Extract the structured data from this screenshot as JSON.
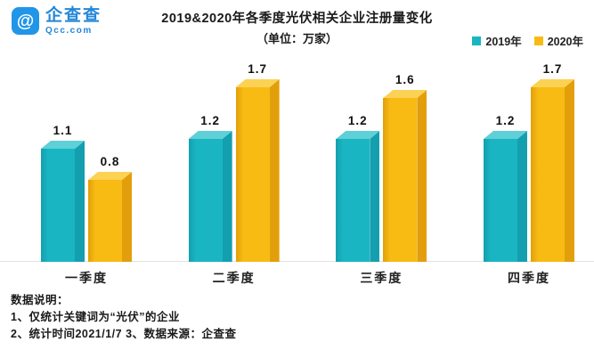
{
  "brand": {
    "name": "企查查",
    "domain_label": "Qcc.com",
    "logo_color": "#2196e8"
  },
  "header": {
    "title": "2019&2020年各季度光伏相关企业注册量变化",
    "subtitle": "（单位：万家）"
  },
  "chart_data": {
    "type": "bar",
    "title": "2019&2020年各季度光伏相关企业注册量变化",
    "unit_label": "（单位：万家）",
    "categories": [
      "一季度",
      "二季度",
      "三季度",
      "四季度"
    ],
    "series": [
      {
        "name": "2019年",
        "values": [
          1.1,
          1.2,
          1.2,
          1.2
        ],
        "color": "#1ab5c3",
        "color_top": "#5fd0d8",
        "color_side": "#149fae"
      },
      {
        "name": "2020年",
        "values": [
          0.8,
          1.7,
          1.6,
          1.7
        ],
        "color": "#f8bb13",
        "color_top": "#fcd254",
        "color_side": "#e39f0b"
      }
    ],
    "ylim": [
      0,
      1.8
    ],
    "value_labels": true,
    "grid": false,
    "legend_position": "top-right",
    "baseline_color": "#e2e2e2"
  },
  "notes": {
    "heading": "数据说明：",
    "line1": "1、仅统计关键词为“光伏”的企业",
    "line2": "2、统计时间2021/1/7  3、数据来源：企查查"
  }
}
